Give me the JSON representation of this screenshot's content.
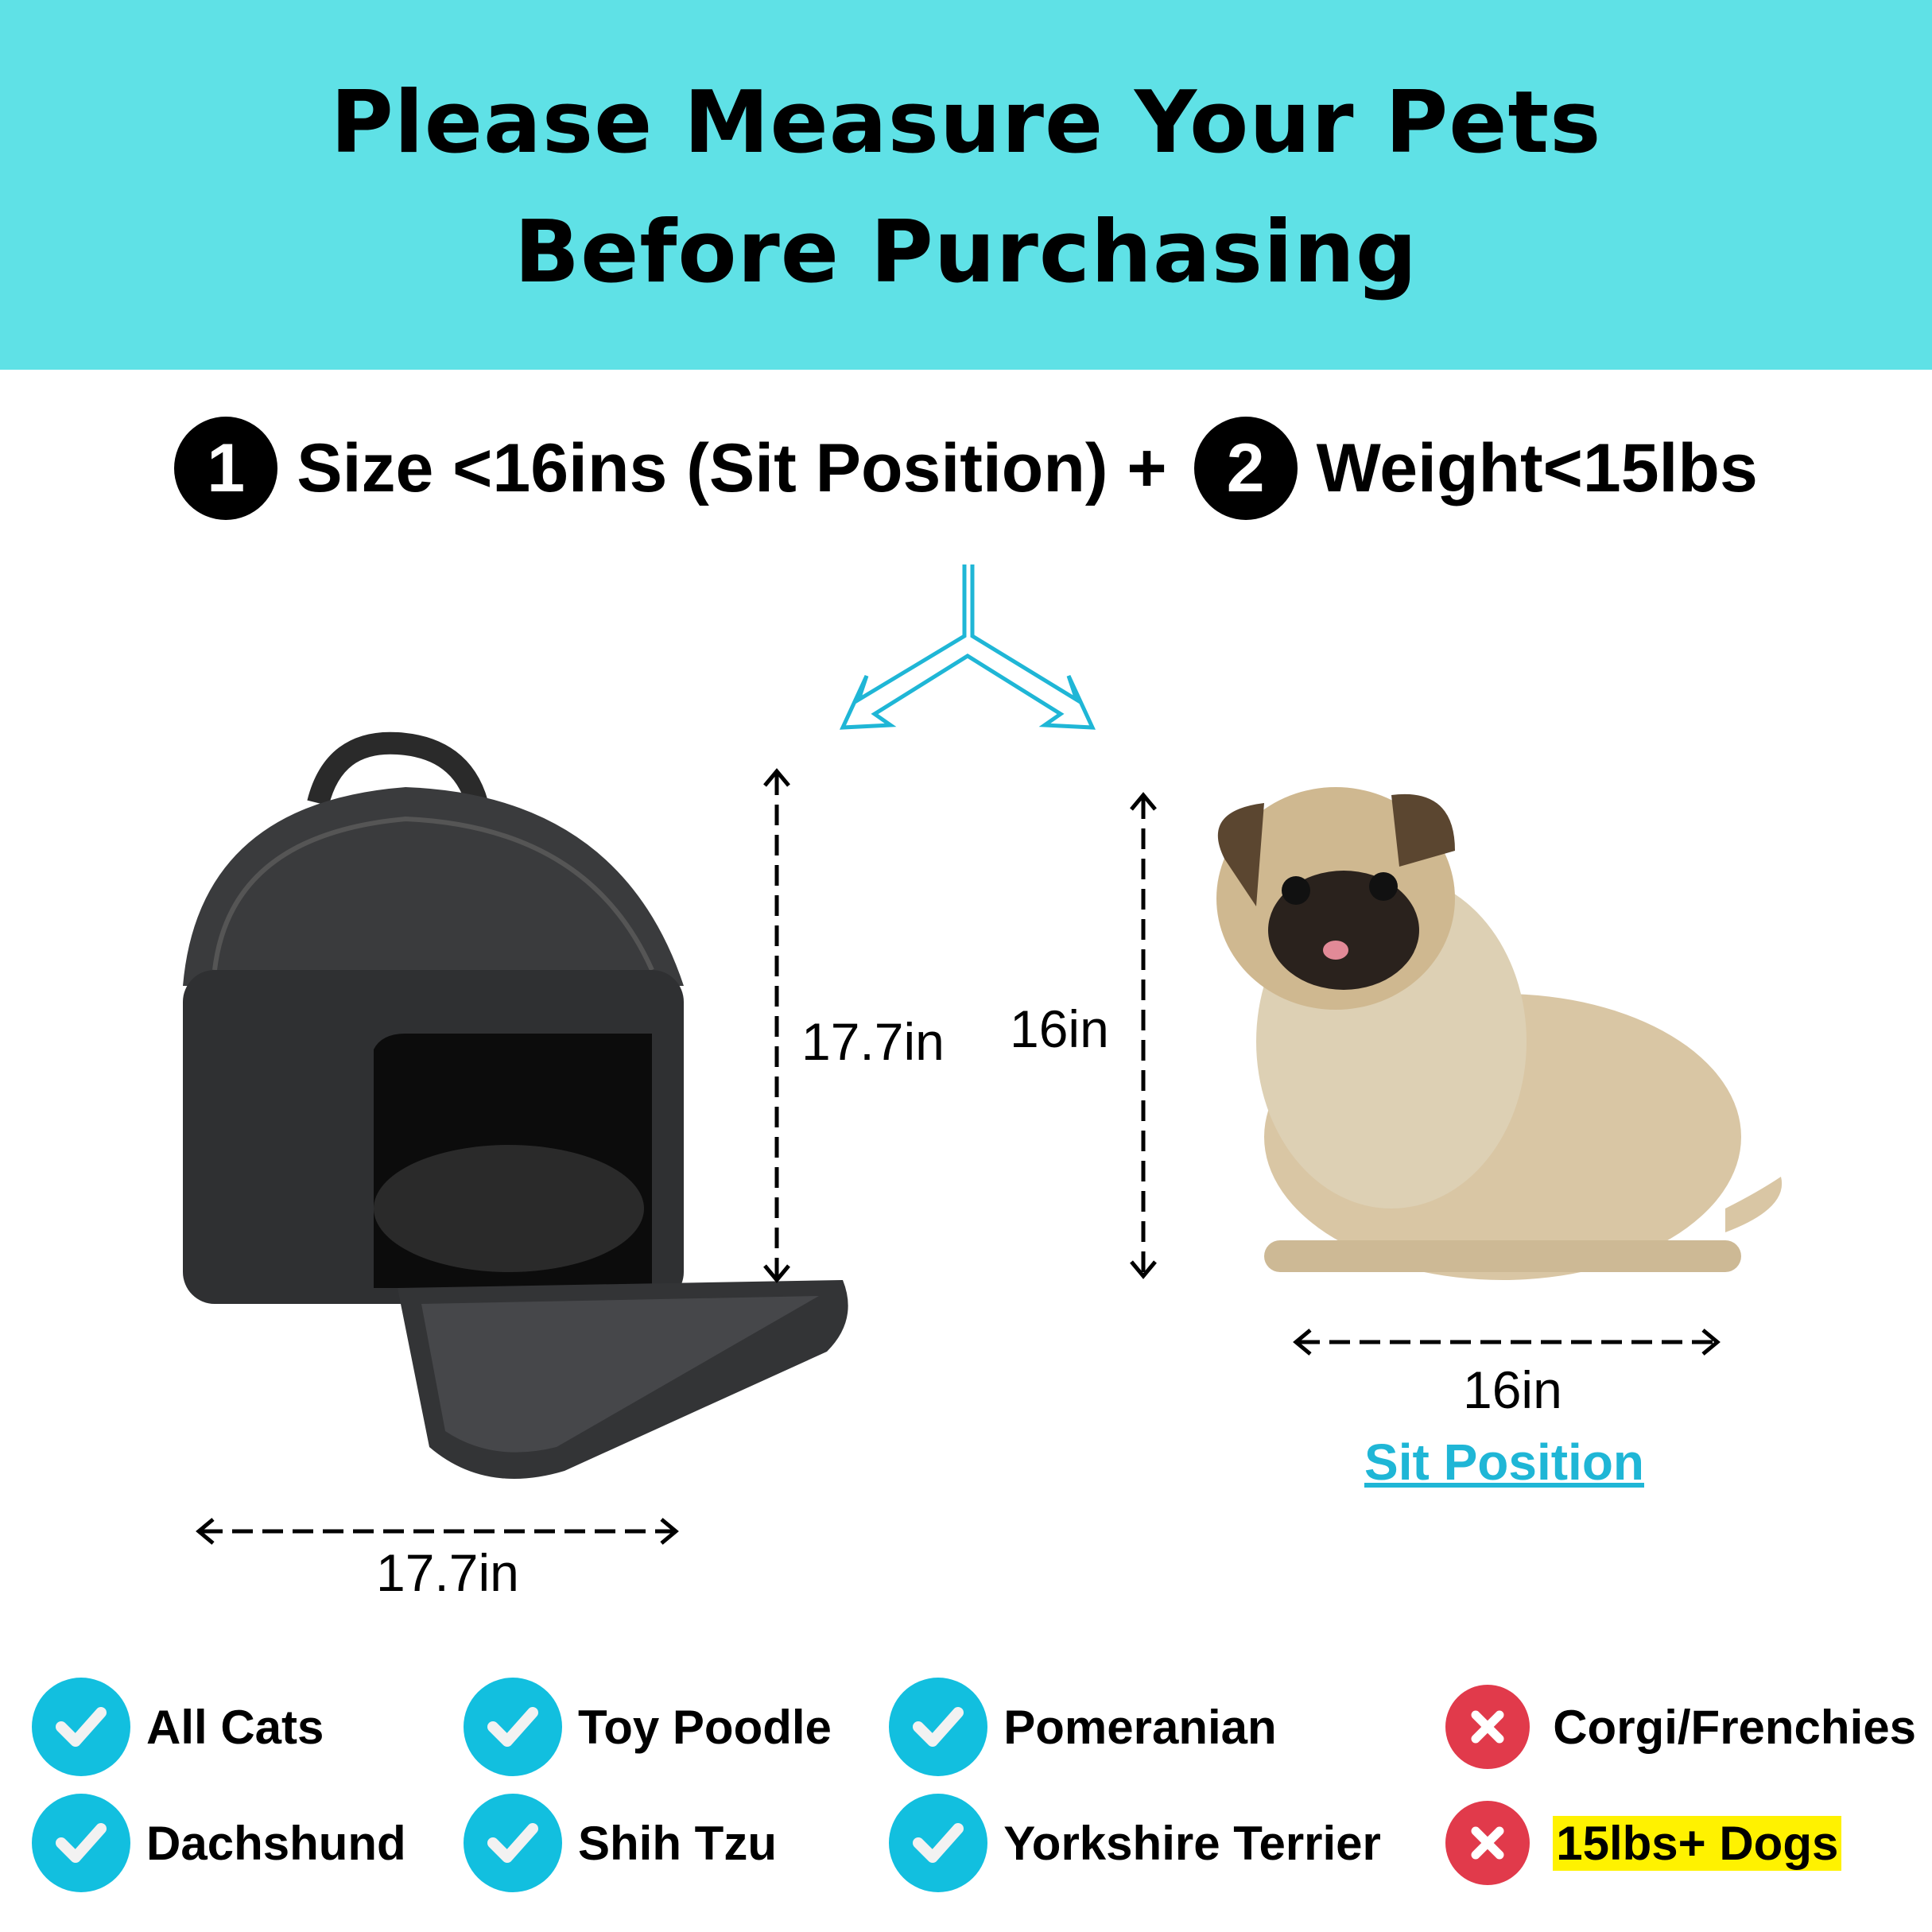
{
  "header": {
    "title_line1": "Please Measure Your Pets",
    "title_line2": "Before Purchasing",
    "background": "#5fe1e6"
  },
  "requirements": {
    "step1_number": "1",
    "step1_text": "Size <16ins (Sit Position) +",
    "step2_number": "2",
    "step2_text": "Weight<15lbs"
  },
  "carrier": {
    "height_label": "17.7in",
    "width_label": "17.7in"
  },
  "pet": {
    "height_label": "16in",
    "width_label": "16in",
    "position_link": "Sit Position"
  },
  "colors": {
    "accent": "#12bfdf",
    "reject": "#e13a4b",
    "highlight": "#fff200"
  },
  "suitable": [
    {
      "label": "All Cats",
      "status": "ok"
    },
    {
      "label": "Toy Poodle",
      "status": "ok"
    },
    {
      "label": "Pomeranian",
      "status": "ok"
    },
    {
      "label": "Corgi/Frenchies",
      "status": "no"
    },
    {
      "label": "Dachshund",
      "status": "ok"
    },
    {
      "label": "Shih Tzu",
      "status": "ok"
    },
    {
      "label": "Yorkshire Terrier",
      "status": "ok"
    },
    {
      "label": "15lbs+ Dogs",
      "status": "no"
    }
  ]
}
